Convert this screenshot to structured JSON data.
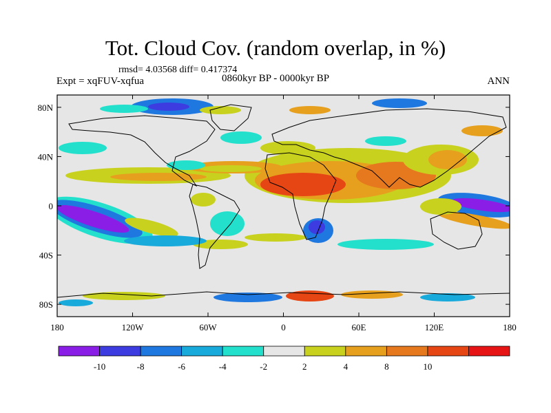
{
  "header": {
    "title": "Tot. Cloud Cov. (random overlap, in %)",
    "stats": "rmsd= 4.03568 diff= 0.417374",
    "experiment": "Expt = xqFUV-xqfua",
    "period": "0860kyr BP - 0000kyr BP",
    "season": "ANN"
  },
  "axes": {
    "lat_labels": [
      "80N",
      "40N",
      "0",
      "40S",
      "80S"
    ],
    "lon_labels": [
      "180",
      "120W",
      "60W",
      "0",
      "60E",
      "120E",
      "180"
    ]
  },
  "colorbar": {
    "labels": [
      "-10",
      "-8",
      "-6",
      "-4",
      "-2",
      "2",
      "4",
      "8",
      "10"
    ],
    "colors": [
      "#8a1ee6",
      "#3c3ce0",
      "#1e78e0",
      "#19aadc",
      "#23e0cc",
      "#e6e6e6",
      "#c8d21e",
      "#e6a01e",
      "#e6781e",
      "#e64614",
      "#e61414"
    ]
  },
  "map": {
    "background": "#e6e6e6"
  }
}
